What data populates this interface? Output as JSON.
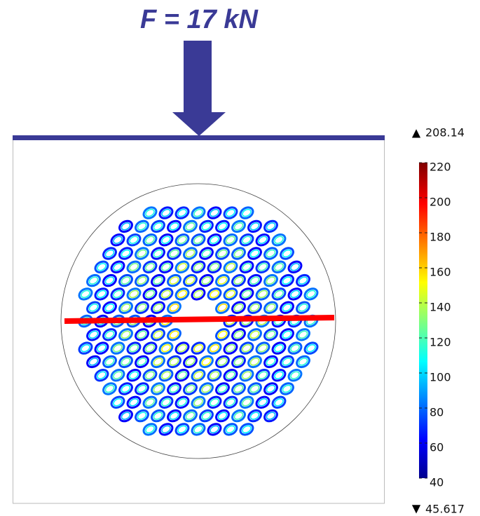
{
  "title": "F = 17 kN",
  "colorbar": {
    "max_label": "208.14",
    "min_label": "45.617",
    "range": [
      40,
      220
    ],
    "ticks": [
      40,
      60,
      80,
      100,
      120,
      140,
      160,
      180,
      200,
      220
    ]
  }
}
